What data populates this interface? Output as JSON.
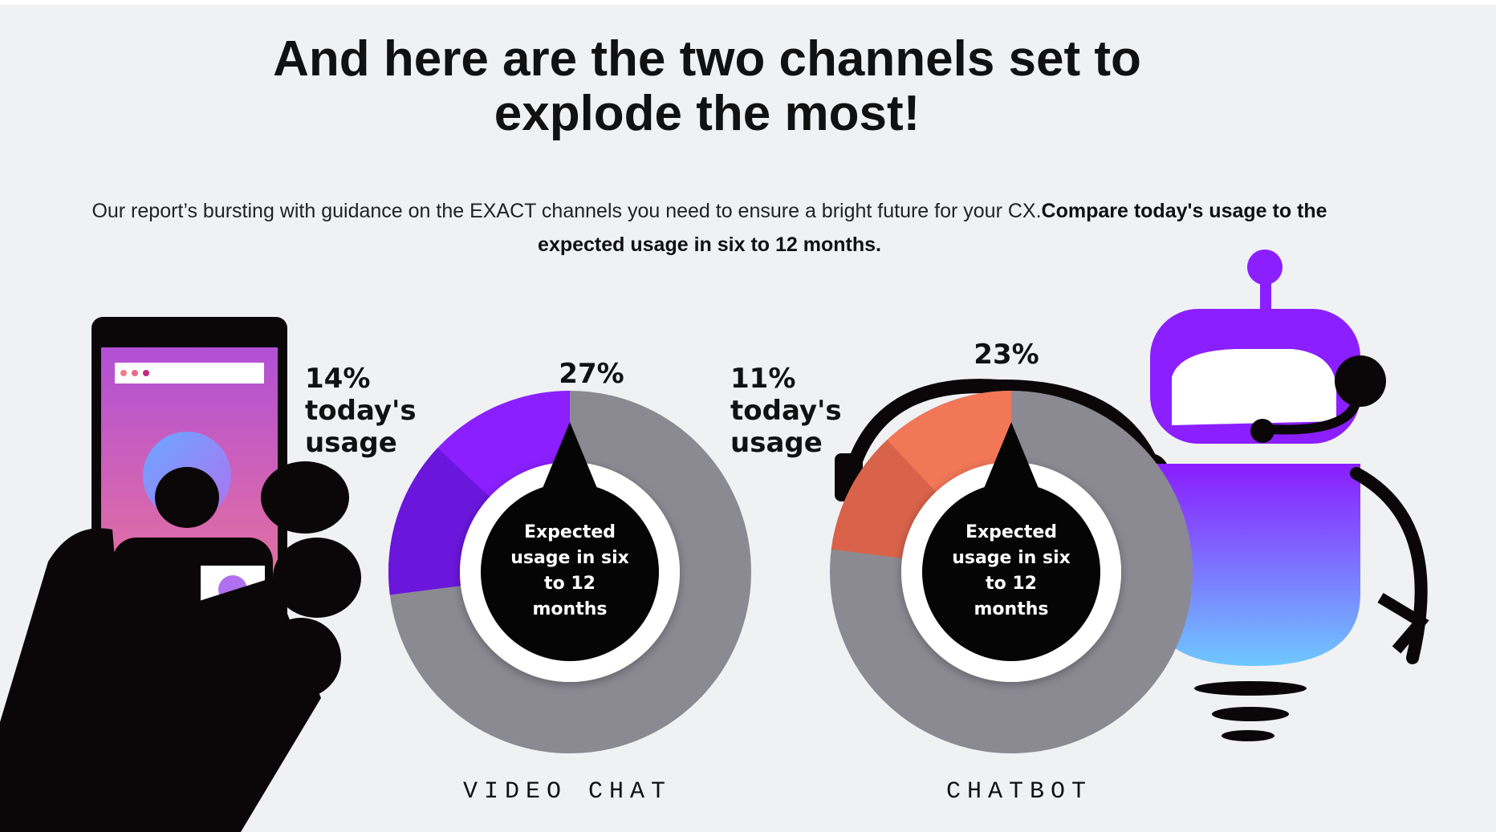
{
  "header": {
    "title": "And here are the two channels set to explode the most!"
  },
  "subtitle": {
    "text": "Our report’s bursting with guidance on the EXACT channels you need to ensure a bright future for your CX.",
    "emphasis": "Compare today's usage to the expected usage in six to 12 months."
  },
  "chart_data": [
    {
      "type": "donut",
      "label": "VIDEO CHAT",
      "center_label": "Expected usage in six to 12 months",
      "values": [
        14,
        27
      ],
      "value_labels": [
        "14% today's usage",
        "27%"
      ],
      "colors": [
        "#6a16dc",
        "#8b1fff"
      ],
      "rest_color": "#8b8a93"
    },
    {
      "type": "donut",
      "label": "CHATBOT",
      "center_label": "Expected usage in six to 12 months",
      "values": [
        11,
        23
      ],
      "value_labels": [
        "11% today's usage",
        "23%"
      ],
      "colors": [
        "#d9634a",
        "#f27757"
      ],
      "rest_color": "#8b8a93"
    }
  ]
}
